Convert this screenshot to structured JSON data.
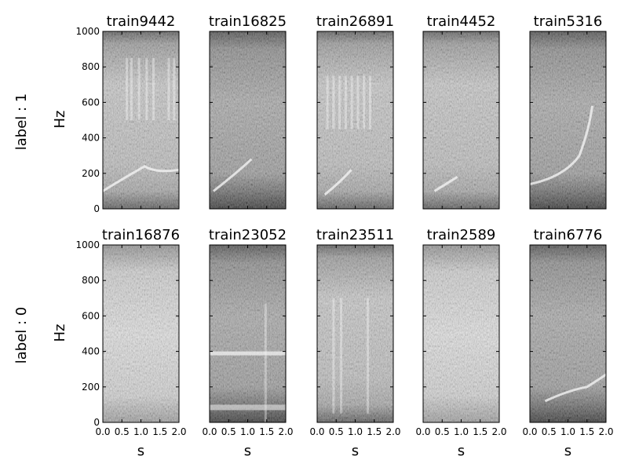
{
  "figure": {
    "row_labels": [
      "label : 1",
      "label : 0"
    ],
    "y_axis_label": "Hz",
    "x_axis_label": "s"
  },
  "chart_data": {
    "type": "heatmap",
    "grid": {
      "rows": 2,
      "cols": 5,
      "sharex": true,
      "sharey": true
    },
    "x_ticks": [
      "0.0",
      "0.5",
      "1.0",
      "1.5",
      "2.0"
    ],
    "y_ticks": [
      "0",
      "200",
      "400",
      "600",
      "800",
      "1000"
    ],
    "xlim": [
      0,
      2.0
    ],
    "ylim": [
      0,
      1000
    ],
    "xlabel": "s",
    "ylabel": "Hz",
    "colormap": "gray",
    "panels": [
      {
        "title": "train9442",
        "row": 0,
        "col": 0,
        "label": 1
      },
      {
        "title": "train16825",
        "row": 0,
        "col": 1,
        "label": 1
      },
      {
        "title": "train26891",
        "row": 0,
        "col": 2,
        "label": 1
      },
      {
        "title": "train4452",
        "row": 0,
        "col": 3,
        "label": 1
      },
      {
        "title": "train5316",
        "row": 0,
        "col": 4,
        "label": 1
      },
      {
        "title": "train16876",
        "row": 1,
        "col": 0,
        "label": 0
      },
      {
        "title": "train23052",
        "row": 1,
        "col": 1,
        "label": 0
      },
      {
        "title": "train23511",
        "row": 1,
        "col": 2,
        "label": 0
      },
      {
        "title": "train2589",
        "row": 1,
        "col": 3,
        "label": 0
      },
      {
        "title": "train6776",
        "row": 1,
        "col": 4,
        "label": 0
      }
    ]
  }
}
